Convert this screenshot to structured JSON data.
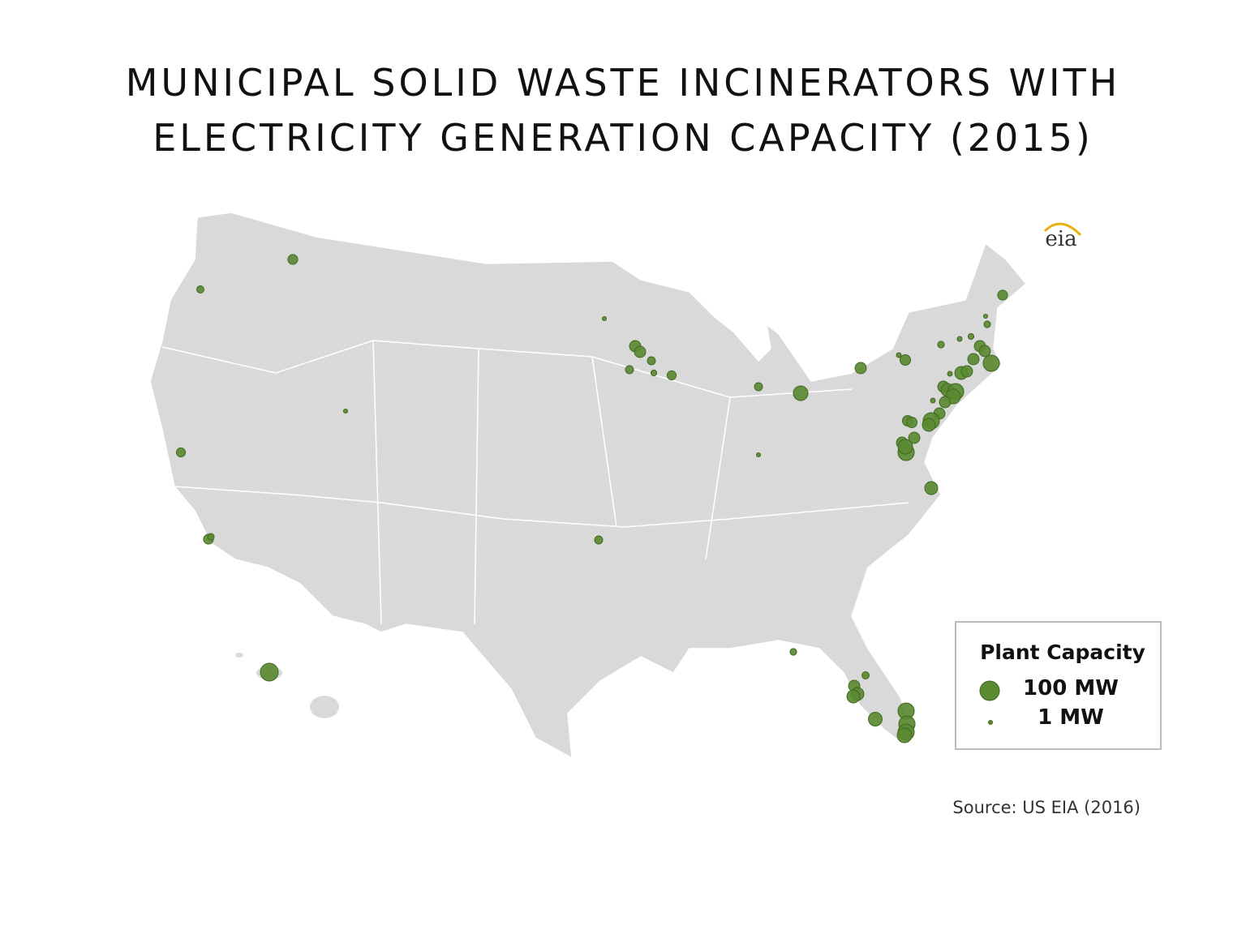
{
  "title": [
    "MUNICIPAL SOLID WASTE INCINERATORS WITH",
    "ELECTRICITY GENERATION CAPACITY (2015)"
  ],
  "logo": "eia",
  "legend": {
    "title": "Plant Capacity",
    "items": [
      {
        "value": 100,
        "label": "100 MW"
      },
      {
        "value": 1,
        "label": "1 MW"
      }
    ]
  },
  "source": "Source: US EIA (2016)",
  "plant_capacity_mw": [
    19,
    8,
    15,
    19,
    6,
    82,
    1,
    11,
    1,
    27,
    27,
    11,
    11,
    4,
    15,
    11,
    51,
    1,
    6,
    8,
    27,
    38,
    38,
    44,
    66,
    66,
    66,
    51,
    38,
    27,
    2,
    23,
    6,
    2,
    4,
    1,
    6,
    19,
    27,
    27,
    66,
    27,
    38,
    27,
    2,
    27,
    38,
    66,
    51,
    27,
    2,
    27,
    66,
    38,
    23,
    23,
    27,
    27,
    66,
    51
  ]
}
